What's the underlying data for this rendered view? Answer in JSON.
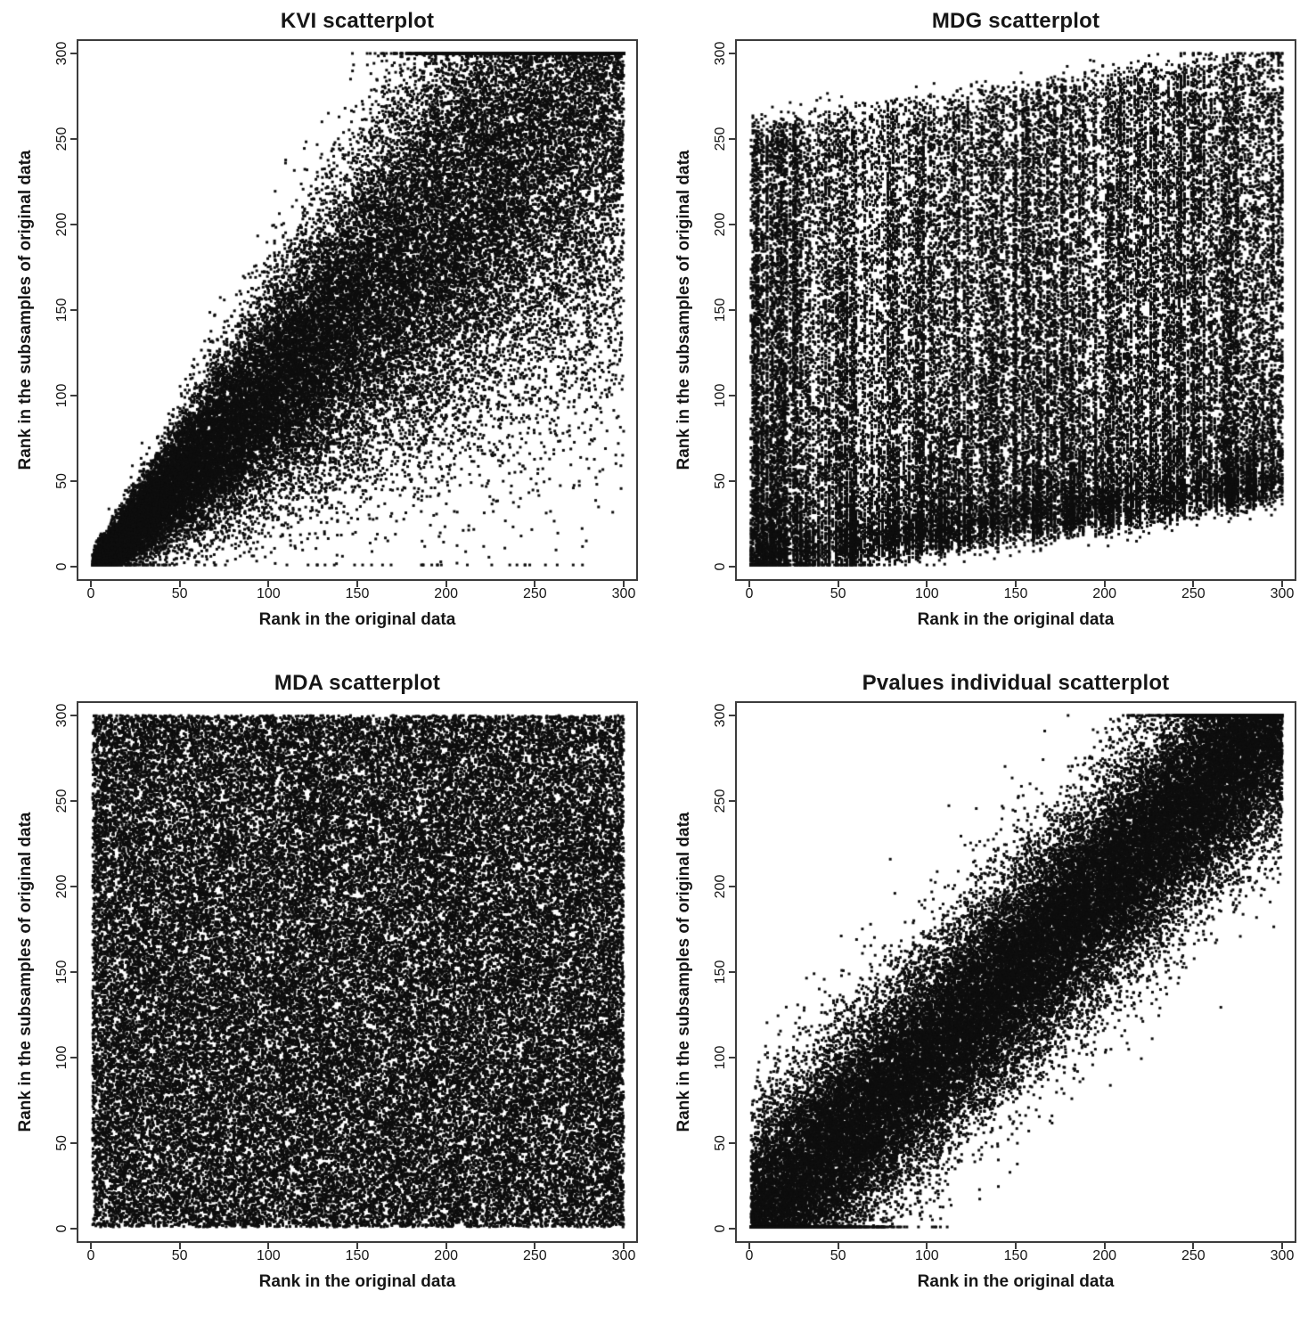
{
  "figure": {
    "background": "#ffffff",
    "point_color": "#0e0e0e",
    "axis_color": "#3c3c3c",
    "text_color": "#161616"
  },
  "chart_data": [
    {
      "type": "scatter",
      "title": "KVI scatterplot",
      "xlabel": "Rank in the original data",
      "ylabel": "Rank in the subsamples of original data",
      "xlim": [
        0,
        300
      ],
      "ylim": [
        0,
        300
      ],
      "xticks": [
        0,
        50,
        100,
        150,
        200,
        250,
        300
      ],
      "yticks": [
        0,
        50,
        100,
        150,
        200,
        250,
        300
      ],
      "legend": "none",
      "grid": "off",
      "pattern": {
        "kind": "funnel",
        "summary": "Tight positive rank correlation near rank 0 that fans out as rank increases; spread grows roughly linearly with x and saturates at rank 300 in the upper right.",
        "n": 42000,
        "noise_base": 3,
        "noise_slope": 0.3,
        "point_size": 3,
        "seed": 101
      }
    },
    {
      "type": "scatter",
      "title": "MDG scatterplot",
      "xlabel": "Rank in the original data",
      "ylabel": "Rank in the subsamples of original data",
      "xlim": [
        0,
        300
      ],
      "ylim": [
        0,
        300
      ],
      "xticks": [
        0,
        50,
        100,
        150,
        200,
        250,
        300
      ],
      "yticks": [
        0,
        50,
        100,
        150,
        200,
        250,
        300
      ],
      "legend": "none",
      "grid": "off",
      "pattern": {
        "kind": "striped_noise",
        "summary": "Very weak correlation; dense mass near the bottom for all ranks with discrete vertical bands of points spanning the full y range.",
        "n": 46000,
        "bottom_pow": 3,
        "corr": 0.15,
        "point_size": 3,
        "seed": 202
      }
    },
    {
      "type": "scatter",
      "title": "MDA scatterplot",
      "xlabel": "Rank in the original data",
      "ylabel": "Rank in the subsamples of original data",
      "xlim": [
        0,
        300
      ],
      "ylim": [
        0,
        300
      ],
      "xticks": [
        0,
        50,
        100,
        150,
        200,
        250,
        300
      ],
      "yticks": [
        0,
        50,
        100,
        150,
        200,
        250,
        300
      ],
      "legend": "none",
      "grid": "off",
      "pattern": {
        "kind": "uniform",
        "summary": "No correlation; ranks in subsamples are essentially uniform over the whole 0-300 square, filling it almost solid black.",
        "n": 62000,
        "point_size": 3,
        "seed": 303
      }
    },
    {
      "type": "scatter",
      "title": "Pvalues individual scatterplot",
      "xlabel": "Rank in the original data",
      "ylabel": "Rank in the subsamples of original data",
      "xlim": [
        0,
        300
      ],
      "ylim": [
        0,
        300
      ],
      "xticks": [
        0,
        50,
        100,
        150,
        200,
        250,
        300
      ],
      "yticks": [
        0,
        50,
        100,
        150,
        200,
        250,
        300
      ],
      "legend": "none",
      "grid": "off",
      "pattern": {
        "kind": "diagonal_band",
        "summary": "Strong positive rank correlation; dense diagonal band y ~ x with roughly constant spread (sd ~ 32 ranks), tight at both corners.",
        "n": 46000,
        "sd": 32,
        "point_size": 3,
        "seed": 404
      }
    }
  ]
}
